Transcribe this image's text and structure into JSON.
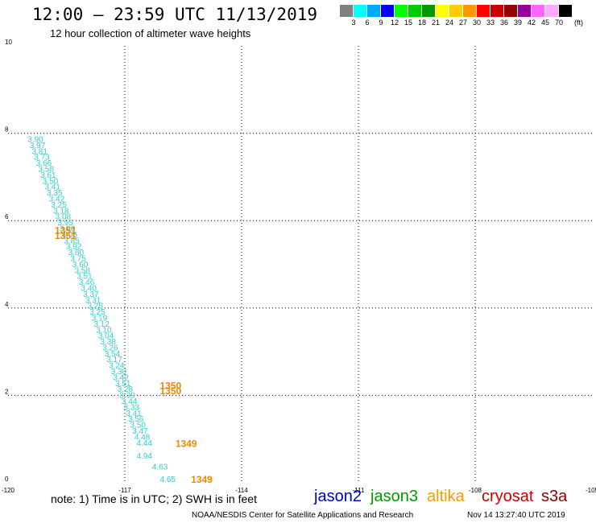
{
  "header": {
    "title": "12:00 – 23:59 UTC 11/13/2019",
    "subtitle": "12 hour collection of altimeter wave heights"
  },
  "colorbar": {
    "unit": "(ft)",
    "swatches": [
      {
        "color": "#808080",
        "label": "3"
      },
      {
        "color": "#00ffff",
        "label": "6"
      },
      {
        "color": "#00aaff",
        "label": "9"
      },
      {
        "color": "#0000ff",
        "label": "12"
      },
      {
        "color": "#00ff00",
        "label": "15"
      },
      {
        "color": "#00cc00",
        "label": "18"
      },
      {
        "color": "#009900",
        "label": "21"
      },
      {
        "color": "#ffff00",
        "label": "24"
      },
      {
        "color": "#ffcc00",
        "label": "27"
      },
      {
        "color": "#ff9900",
        "label": "30"
      },
      {
        "color": "#ff0000",
        "label": "33"
      },
      {
        "color": "#cc0000",
        "label": "36"
      },
      {
        "color": "#990000",
        "label": "39"
      },
      {
        "color": "#990099",
        "label": "42"
      },
      {
        "color": "#ff66ff",
        "label": "45"
      },
      {
        "color": "#ffaaff",
        "label": "70"
      },
      {
        "color": "#000000",
        "label": ""
      }
    ]
  },
  "map": {
    "x_ticks": [
      "-120",
      "-117",
      "-114",
      "-111",
      "-108",
      "-105"
    ],
    "y_ticks": [
      "0",
      "2",
      "4",
      "6",
      "8",
      "10"
    ],
    "lon_range": [
      -120,
      -105
    ],
    "lat_range": [
      0,
      10
    ],
    "swh_color": "#33cccc",
    "time_color": "#ee8800",
    "track": {
      "start": [
        -119.5,
        7.8
      ],
      "end": [
        -116.7,
        0.85
      ],
      "values": [
        "3.90",
        "3.97",
        "3.81",
        "3.73",
        "3.66",
        "3.58",
        "3.61",
        "3.50",
        "3.41",
        "3.35",
        "3.42",
        "3.25",
        "3.18",
        "3.08",
        "3.95",
        "3.90",
        "4.05",
        "3.85",
        "3.92",
        "3.80",
        "3.75",
        "3.60",
        "3.58",
        "3.51",
        "3.46",
        "3.40",
        "3.37",
        "3.31",
        "3.28",
        "3.25",
        "3.19",
        "3.12",
        "3.10",
        "3.04",
        "3.38",
        "3.26",
        "3.54",
        "3.17",
        "3.24",
        "3.30",
        "3.42",
        "3.51",
        "3.28",
        "3.39",
        "3.44",
        "3.33",
        "3.41",
        "3.56",
        "3.50",
        "3.47",
        "4.48",
        "4.44"
      ]
    },
    "extra_swh": [
      {
        "lon": -116.7,
        "lat": 0.55,
        "text": "4.94"
      },
      {
        "lon": -116.3,
        "lat": 0.3,
        "text": "4.63"
      },
      {
        "lon": -116.1,
        "lat": 0.02,
        "text": "4.65"
      }
    ],
    "times": [
      {
        "lon": -118.8,
        "lat": 5.7,
        "text": "1351"
      },
      {
        "lon": -118.8,
        "lat": 5.58,
        "text": "1351"
      },
      {
        "lon": -116.1,
        "lat": 2.15,
        "text": "1350"
      },
      {
        "lon": -116.1,
        "lat": 2.03,
        "text": "1350"
      },
      {
        "lon": -115.7,
        "lat": 0.82,
        "text": "1349"
      },
      {
        "lon": -115.3,
        "lat": 0.0,
        "text": "1349"
      }
    ]
  },
  "footer": {
    "note": "note:  1) Time is in UTC;  2) SWH is in feet",
    "satellites": [
      {
        "name": "jason2",
        "color": "#0000cc"
      },
      {
        "name": "jason3",
        "color": "#009900"
      },
      {
        "name": "altika",
        "color": "#ff9900"
      },
      {
        "name": "cryosat",
        "color": "#cc0000"
      },
      {
        "name": "s3a",
        "color": "#880000"
      }
    ],
    "credit": "NOAA/NESDIS Center for Satellite Applications and Research",
    "timestamp": "Nov 14 13:27:40 UTC 2019"
  }
}
